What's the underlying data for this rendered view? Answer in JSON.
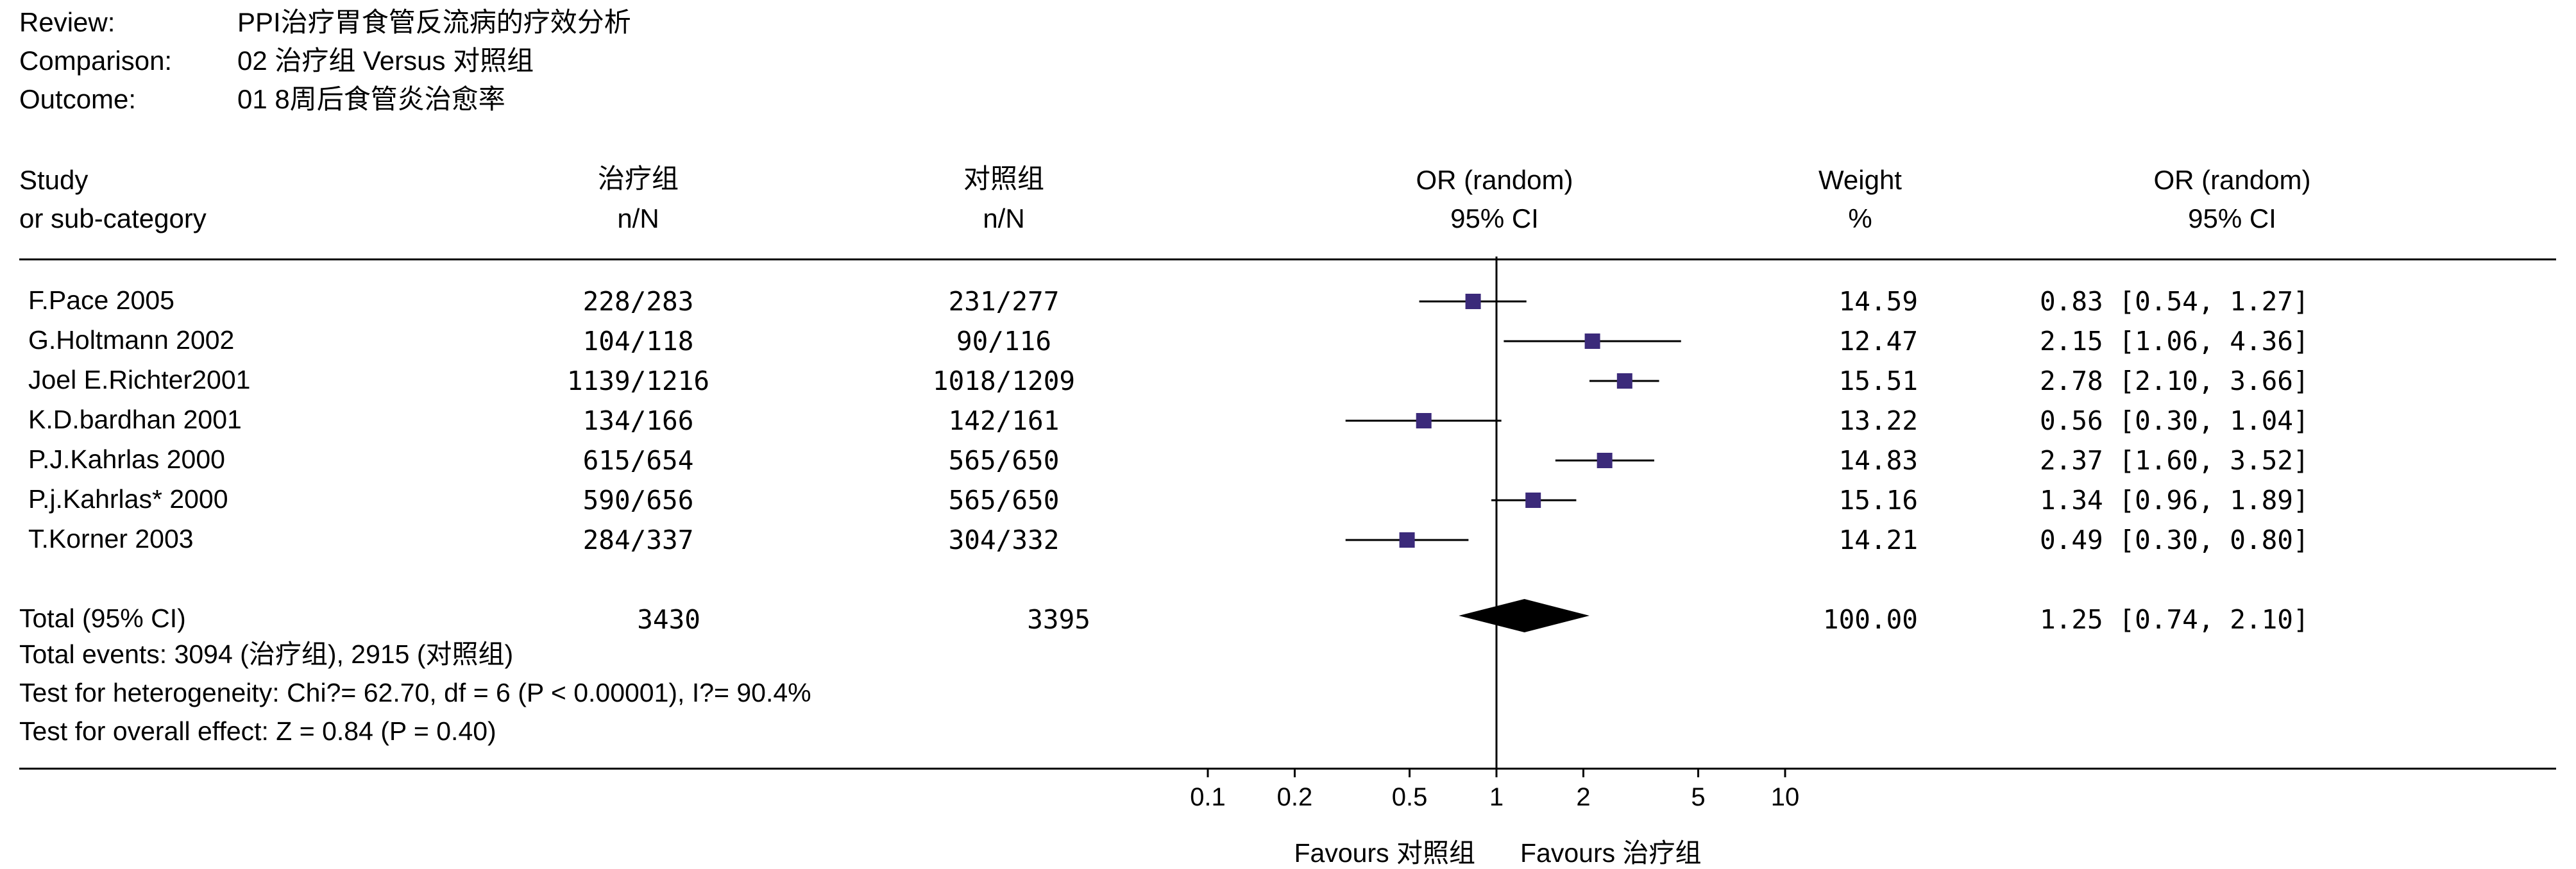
{
  "header": {
    "review_label": "Review:",
    "review_value": "PPI治疗胃食管反流病的疗效分析",
    "comparison_label": "Comparison:",
    "comparison_value": "02 治疗组 Versus 对照组",
    "outcome_label": "Outcome:",
    "outcome_value": "01 8周后食管炎治愈率"
  },
  "columns": {
    "study_1": "Study",
    "study_2": "or sub-category",
    "treat_1": "治疗组",
    "treat_2": "n/N",
    "ctrl_1": "对照组",
    "ctrl_2": "n/N",
    "plot_1": "OR (random)",
    "plot_2": "95% CI",
    "weight_1": "Weight",
    "weight_2": "%",
    "or_1": "OR (random)",
    "or_2": "95% CI"
  },
  "studies": [
    {
      "name": "F.Pace 2005",
      "treat": "228/283",
      "ctrl": "231/277",
      "weight": "14.59",
      "ci_text": "0.83 [0.54, 1.27]"
    },
    {
      "name": "G.Holtmann 2002",
      "treat": "104/118",
      "ctrl": "90/116",
      "weight": "12.47",
      "ci_text": "2.15 [1.06, 4.36]"
    },
    {
      "name": "Joel E.Richter2001",
      "treat": "1139/1216",
      "ctrl": "1018/1209",
      "weight": "15.51",
      "ci_text": "2.78 [2.10, 3.66]"
    },
    {
      "name": "K.D.bardhan 2001",
      "treat": "134/166",
      "ctrl": "142/161",
      "weight": "13.22",
      "ci_text": "0.56 [0.30, 1.04]"
    },
    {
      "name": "P.J.Kahrlas 2000",
      "treat": "615/654",
      "ctrl": "565/650",
      "weight": "14.83",
      "ci_text": "2.37 [1.60, 3.52]"
    },
    {
      "name": "P.j.Kahrlas* 2000",
      "treat": "590/656",
      "ctrl": "565/650",
      "weight": "15.16",
      "ci_text": "1.34 [0.96, 1.89]"
    },
    {
      "name": "T.Korner 2003",
      "treat": "284/337",
      "ctrl": "304/332",
      "weight": "14.21",
      "ci_text": "0.49 [0.30, 0.80]"
    }
  ],
  "total": {
    "label": "Total (95% CI)",
    "treat": "3430",
    "ctrl": "3395",
    "weight": "100.00",
    "ci_text": "1.25 [0.74, 2.10]"
  },
  "footnotes": {
    "events": "Total events: 3094 (治疗组), 2915 (对照组)",
    "heterogeneity": "Test for heterogeneity: Chi?= 62.70, df = 6 (P < 0.00001), I?= 90.4%",
    "overall": "Test for overall effect: Z = 0.84 (P = 0.40)"
  },
  "axis": {
    "favours_left": "Favours 对照组",
    "favours_right": "Favours 治疗组"
  },
  "colors": {
    "marker": "#3b2a7a",
    "line": "#000000"
  },
  "chart_data": {
    "type": "forest",
    "scale": "log",
    "x_ticks": [
      0.1,
      0.2,
      0.5,
      1,
      2,
      5,
      10
    ],
    "x_tick_labels": [
      "0.1",
      "0.2",
      "0.5",
      "1",
      "2",
      "5",
      "10"
    ],
    "xlim": [
      0.1,
      10
    ],
    "null_line": 1,
    "studies": [
      {
        "or": 0.83,
        "lo": 0.54,
        "hi": 1.27,
        "weight": 14.59
      },
      {
        "or": 2.15,
        "lo": 1.06,
        "hi": 4.36,
        "weight": 12.47
      },
      {
        "or": 2.78,
        "lo": 2.1,
        "hi": 3.66,
        "weight": 15.51
      },
      {
        "or": 0.56,
        "lo": 0.3,
        "hi": 1.04,
        "weight": 13.22
      },
      {
        "or": 2.37,
        "lo": 1.6,
        "hi": 3.52,
        "weight": 14.83
      },
      {
        "or": 1.34,
        "lo": 0.96,
        "hi": 1.89,
        "weight": 15.16
      },
      {
        "or": 0.49,
        "lo": 0.3,
        "hi": 0.8,
        "weight": 14.21
      }
    ],
    "total": {
      "or": 1.25,
      "lo": 0.74,
      "hi": 2.1
    }
  }
}
